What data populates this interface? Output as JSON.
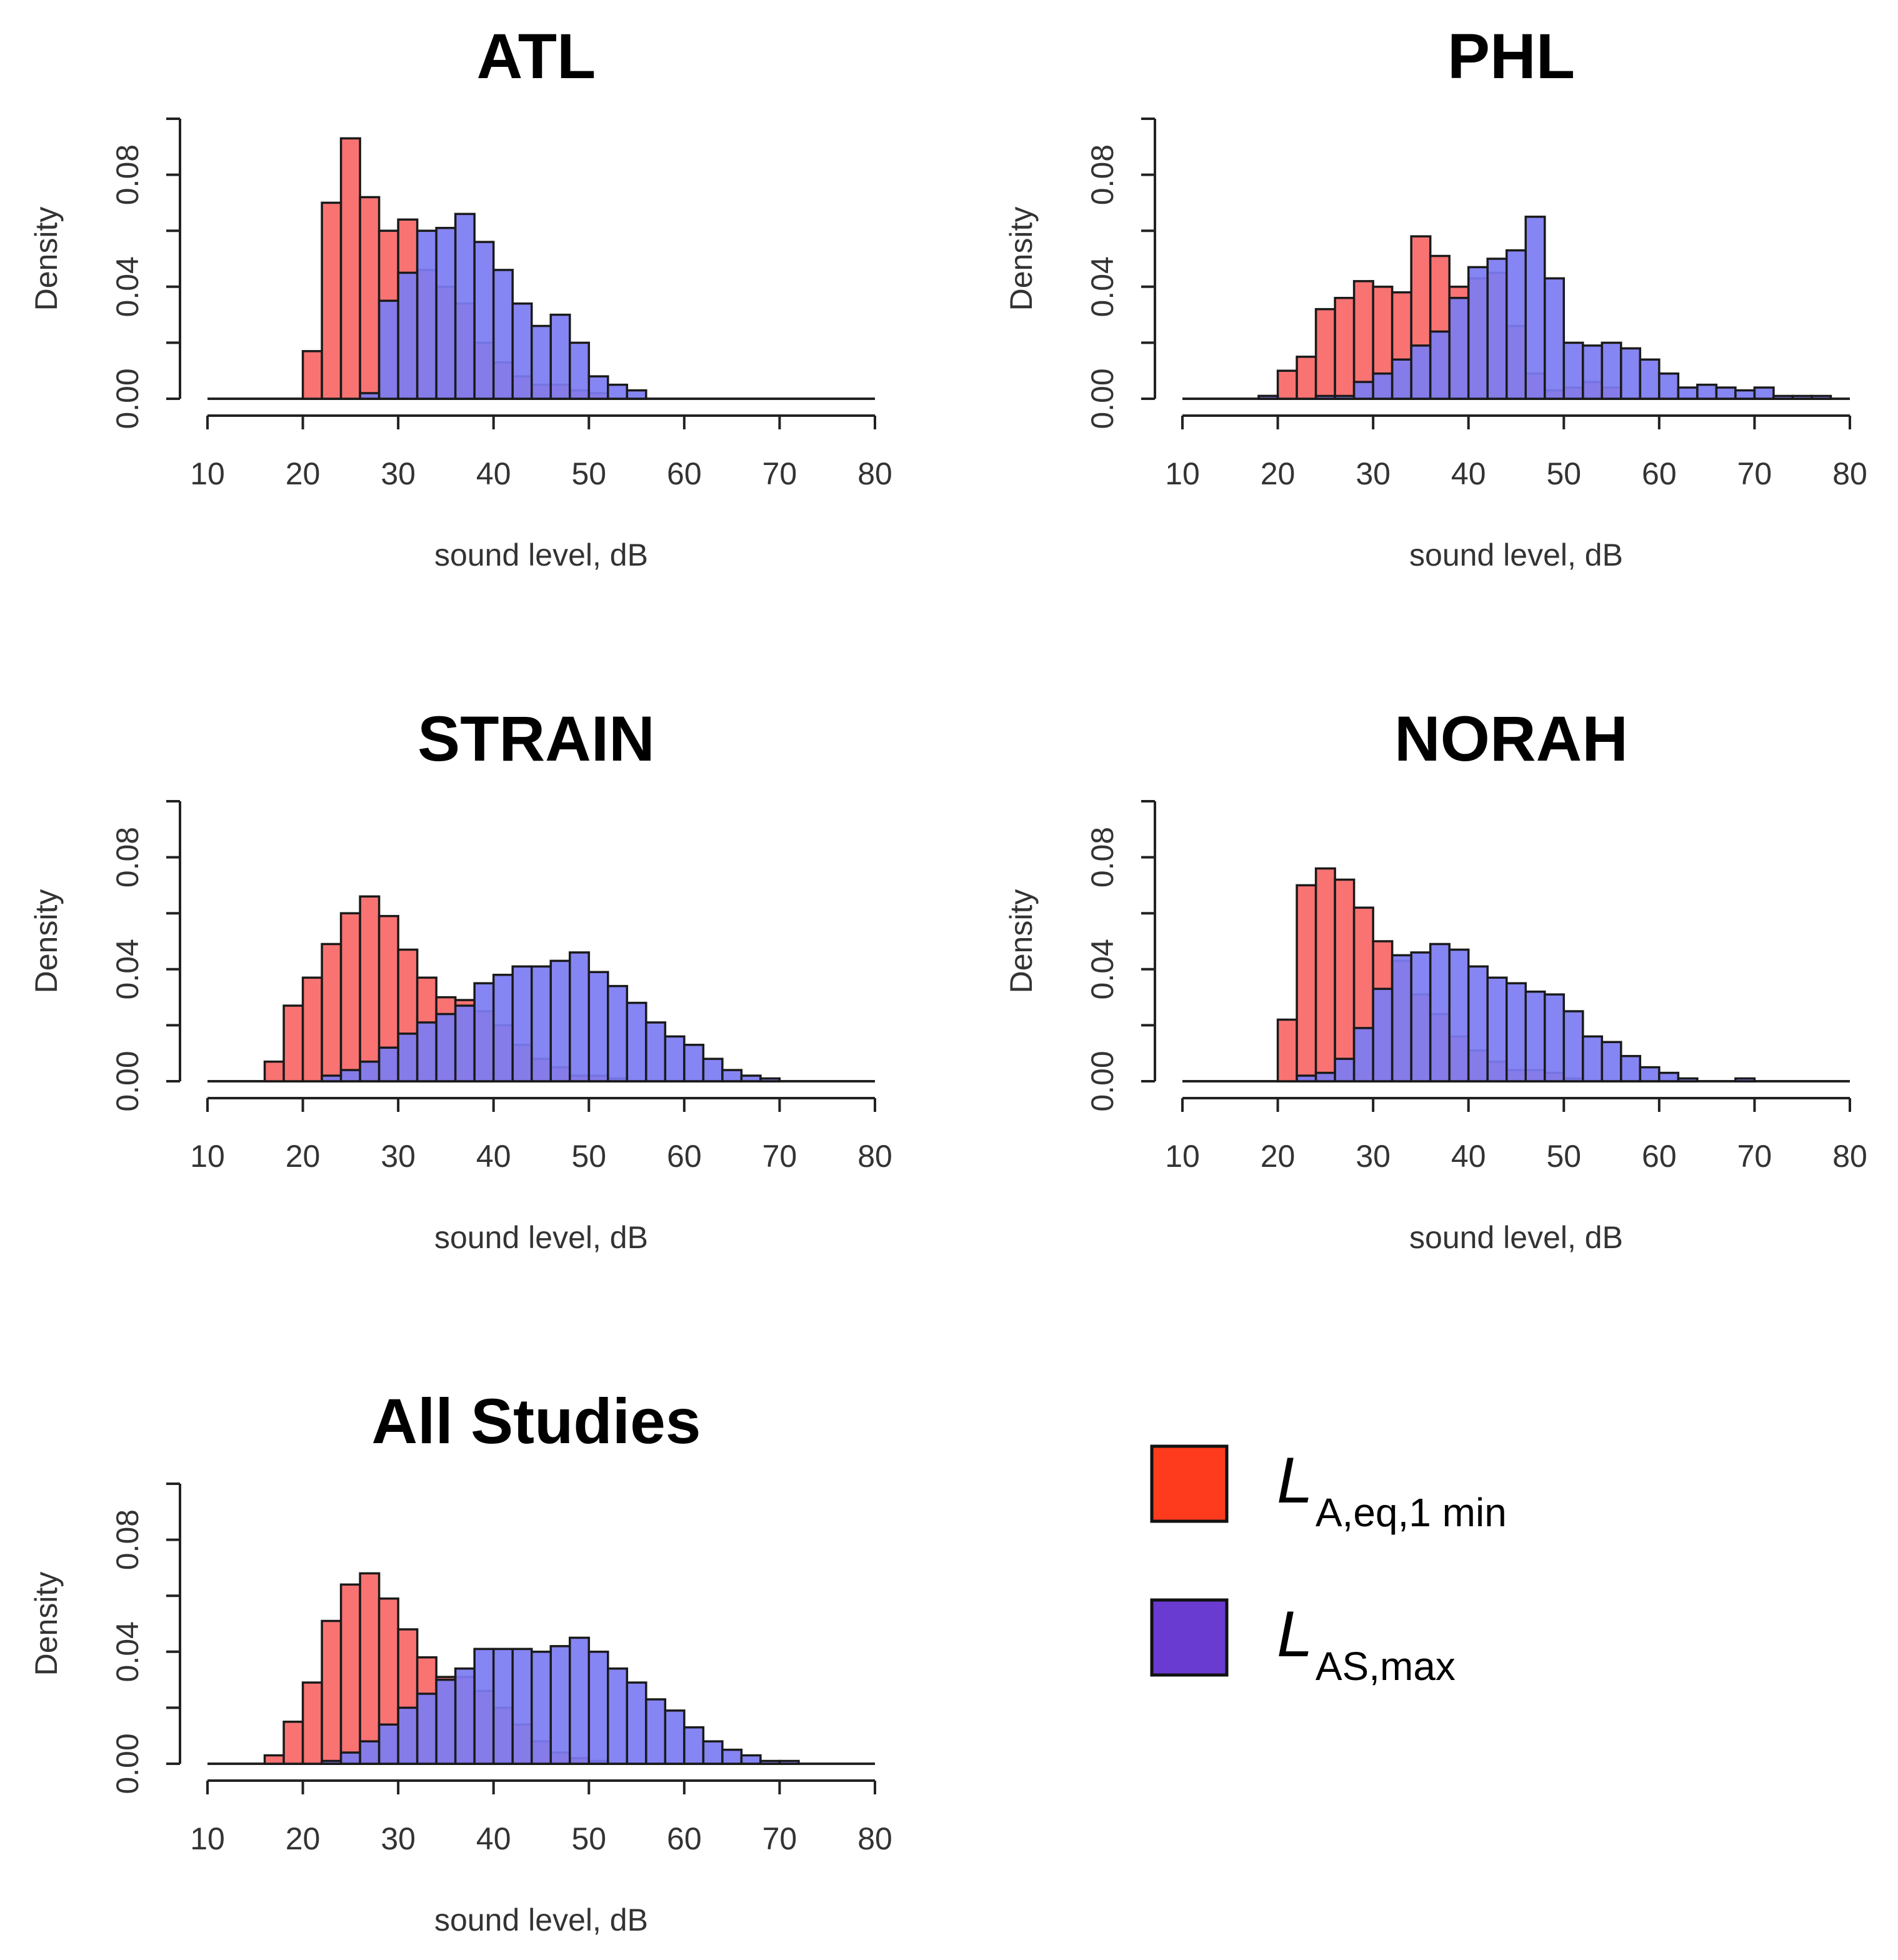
{
  "colors": {
    "leq": "#ff3b1e",
    "lmax": "#6a3bd0",
    "leq_bar": "#f97373",
    "lmax_bar": "#7c7cf2"
  },
  "legend": {
    "leq": {
      "main": "L",
      "sub": "A,eq,1 min"
    },
    "lmax": {
      "main": "L",
      "sub": "AS,max"
    }
  },
  "chart_data": [
    {
      "type": "bar",
      "title": "ATL",
      "xlabel": "sound level, dB",
      "ylabel": "Density",
      "xlim": [
        10,
        80
      ],
      "ylim": [
        0,
        0.1
      ],
      "xticks": [
        "10",
        "20",
        "30",
        "40",
        "50",
        "60",
        "70",
        "80"
      ],
      "yticks": [
        "0.00",
        "0.04",
        "0.08"
      ],
      "bin_start": 10,
      "bin_width": 2,
      "series": [
        {
          "name": "LA,eq,1 min",
          "values": [
            0,
            0,
            0,
            0,
            0,
            0.017,
            0.07,
            0.093,
            0.072,
            0.06,
            0.064,
            0.046,
            0.04,
            0.034,
            0.02,
            0.013,
            0.008,
            0.005,
            0.005,
            0.003,
            0.002,
            0,
            0,
            0,
            0,
            0,
            0,
            0,
            0,
            0,
            0,
            0,
            0,
            0,
            0
          ]
        },
        {
          "name": "LAS,max",
          "values": [
            0,
            0,
            0,
            0,
            0,
            0,
            0,
            0,
            0.002,
            0.035,
            0.045,
            0.06,
            0.061,
            0.066,
            0.056,
            0.046,
            0.034,
            0.026,
            0.03,
            0.02,
            0.008,
            0.005,
            0.003,
            0,
            0,
            0,
            0,
            0,
            0,
            0,
            0,
            0,
            0,
            0,
            0
          ]
        }
      ]
    },
    {
      "type": "bar",
      "title": "PHL",
      "xlabel": "sound level, dB",
      "ylabel": "Density",
      "xlim": [
        10,
        80
      ],
      "ylim": [
        0,
        0.1
      ],
      "xticks": [
        "10",
        "20",
        "30",
        "40",
        "50",
        "60",
        "70",
        "80"
      ],
      "yticks": [
        "0.00",
        "0.04",
        "0.08"
      ],
      "bin_start": 10,
      "bin_width": 2,
      "series": [
        {
          "name": "LA,eq,1 min",
          "values": [
            0,
            0,
            0,
            0,
            0.001,
            0.01,
            0.015,
            0.032,
            0.036,
            0.042,
            0.04,
            0.038,
            0.058,
            0.051,
            0.04,
            0.043,
            0.045,
            0.026,
            0.009,
            0.003,
            0.004,
            0.006,
            0.004,
            0,
            0,
            0,
            0,
            0,
            0,
            0,
            0,
            0,
            0,
            0,
            0
          ]
        },
        {
          "name": "LAS,max",
          "values": [
            0,
            0,
            0,
            0,
            0.001,
            0,
            0,
            0.001,
            0.001,
            0.006,
            0.009,
            0.014,
            0.019,
            0.024,
            0.036,
            0.047,
            0.05,
            0.053,
            0.065,
            0.043,
            0.02,
            0.019,
            0.02,
            0.018,
            0.014,
            0.009,
            0.004,
            0.005,
            0.004,
            0.003,
            0.004,
            0.001,
            0.001,
            0.001,
            0
          ]
        }
      ]
    },
    {
      "type": "bar",
      "title": "STRAIN",
      "xlabel": "sound level, dB",
      "ylabel": "Density",
      "xlim": [
        10,
        80
      ],
      "ylim": [
        0,
        0.1
      ],
      "xticks": [
        "10",
        "20",
        "30",
        "40",
        "50",
        "60",
        "70",
        "80"
      ],
      "yticks": [
        "0.00",
        "0.04",
        "0.08"
      ],
      "bin_start": 10,
      "bin_width": 2,
      "series": [
        {
          "name": "LA,eq,1 min",
          "values": [
            0,
            0,
            0,
            0.007,
            0.027,
            0.037,
            0.049,
            0.06,
            0.066,
            0.059,
            0.047,
            0.037,
            0.03,
            0.029,
            0.025,
            0.02,
            0.013,
            0.008,
            0.005,
            0.002,
            0.002,
            0.001,
            0,
            0,
            0,
            0,
            0,
            0,
            0,
            0,
            0,
            0,
            0,
            0,
            0
          ]
        },
        {
          "name": "LAS,max",
          "values": [
            0,
            0,
            0,
            0,
            0,
            0,
            0.002,
            0.004,
            0.007,
            0.012,
            0.017,
            0.021,
            0.024,
            0.027,
            0.035,
            0.038,
            0.041,
            0.041,
            0.043,
            0.046,
            0.039,
            0.034,
            0.028,
            0.021,
            0.016,
            0.013,
            0.008,
            0.004,
            0.002,
            0.001,
            0,
            0,
            0,
            0,
            0
          ]
        }
      ]
    },
    {
      "type": "bar",
      "title": "NORAH",
      "xlabel": "sound level, dB",
      "ylabel": "Density",
      "xlim": [
        10,
        80
      ],
      "ylim": [
        0,
        0.1
      ],
      "xticks": [
        "10",
        "20",
        "30",
        "40",
        "50",
        "60",
        "70",
        "80"
      ],
      "yticks": [
        "0.00",
        "0.04",
        "0.08"
      ],
      "bin_start": 10,
      "bin_width": 2,
      "series": [
        {
          "name": "LA,eq,1 min",
          "values": [
            0,
            0,
            0,
            0,
            0,
            0.022,
            0.07,
            0.076,
            0.072,
            0.062,
            0.05,
            0.043,
            0.031,
            0.024,
            0.016,
            0.011,
            0.007,
            0.004,
            0.004,
            0.003,
            0.001,
            0,
            0,
            0,
            0,
            0,
            0,
            0,
            0,
            0,
            0,
            0,
            0,
            0,
            0
          ]
        },
        {
          "name": "LAS,max",
          "values": [
            0,
            0,
            0,
            0,
            0,
            0,
            0.002,
            0.003,
            0.008,
            0.019,
            0.033,
            0.045,
            0.046,
            0.049,
            0.047,
            0.041,
            0.037,
            0.035,
            0.032,
            0.031,
            0.025,
            0.016,
            0.014,
            0.009,
            0.005,
            0.003,
            0.001,
            0,
            0,
            0.001,
            0,
            0,
            0,
            0,
            0
          ]
        }
      ]
    },
    {
      "type": "bar",
      "title": "All Studies",
      "xlabel": "sound level, dB",
      "ylabel": "Density",
      "xlim": [
        10,
        80
      ],
      "ylim": [
        0,
        0.1
      ],
      "xticks": [
        "10",
        "20",
        "30",
        "40",
        "50",
        "60",
        "70",
        "80"
      ],
      "yticks": [
        "0.00",
        "0.04",
        "0.08"
      ],
      "bin_start": 10,
      "bin_width": 2,
      "series": [
        {
          "name": "LA,eq,1 min",
          "values": [
            0,
            0,
            0,
            0.003,
            0.015,
            0.029,
            0.051,
            0.064,
            0.068,
            0.059,
            0.048,
            0.038,
            0.031,
            0.031,
            0.026,
            0.02,
            0.014,
            0.008,
            0.004,
            0.002,
            0.001,
            0,
            0,
            0,
            0,
            0,
            0,
            0,
            0,
            0,
            0,
            0,
            0,
            0,
            0
          ]
        },
        {
          "name": "LAS,max",
          "values": [
            0,
            0,
            0,
            0,
            0,
            0,
            0.001,
            0.004,
            0.008,
            0.014,
            0.02,
            0.025,
            0.03,
            0.034,
            0.041,
            0.041,
            0.041,
            0.04,
            0.042,
            0.045,
            0.04,
            0.034,
            0.029,
            0.023,
            0.019,
            0.013,
            0.008,
            0.005,
            0.003,
            0.001,
            0.001,
            0,
            0,
            0,
            0
          ]
        }
      ]
    }
  ]
}
